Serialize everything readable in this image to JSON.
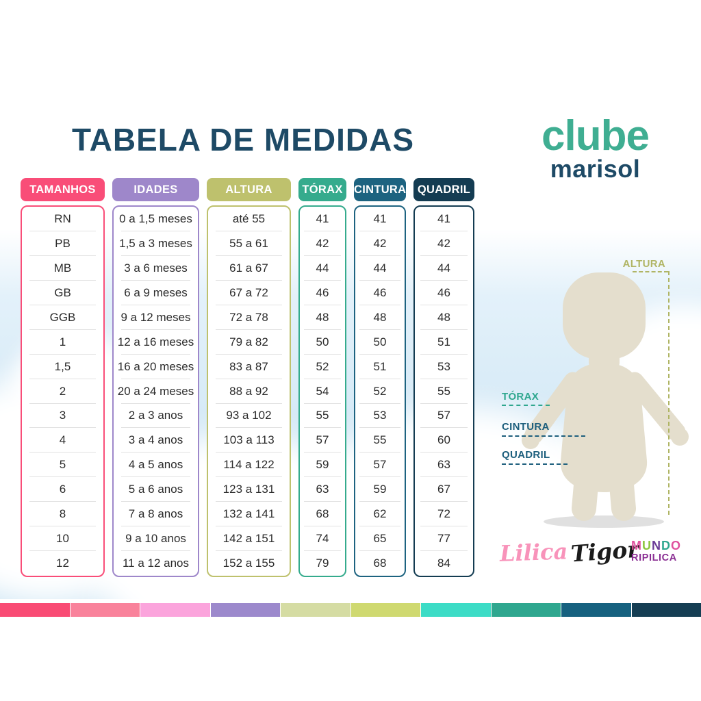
{
  "title": "TABELA DE MEDIDAS",
  "logo": {
    "line1": "clube",
    "line2": "marisol"
  },
  "chart_data": {
    "type": "table",
    "title": "TABELA DE MEDIDAS",
    "columns": [
      {
        "id": "tamanhos",
        "label": "TAMANHOS",
        "color": "#f94d78",
        "values": [
          "RN",
          "PB",
          "MB",
          "GB",
          "GGB",
          "1",
          "1,5",
          "2",
          "3",
          "4",
          "5",
          "6",
          "8",
          "10",
          "12"
        ]
      },
      {
        "id": "idades",
        "label": "IDADES",
        "color": "#9e87ca",
        "values": [
          "0 a 1,5 meses",
          "1,5 a 3 meses",
          "3 a 6 meses",
          "6 a 9 meses",
          "9 a 12 meses",
          "12 a 16 meses",
          "16 a 20 meses",
          "20 a 24 meses",
          "2 a 3 anos",
          "3 a 4 anos",
          "4 a 5 anos",
          "5 a 6 anos",
          "7 a 8 anos",
          "9 a 10 anos",
          "11 a 12 anos"
        ]
      },
      {
        "id": "altura",
        "label": "ALTURA",
        "color": "#bec16d",
        "values": [
          "até 55",
          "55 a 61",
          "61 a 67",
          "67 a 72",
          "72 a 78",
          "79 a 82",
          "83 a 87",
          "88 a 92",
          "93 a 102",
          "103 a 113",
          "114 a 122",
          "123 a 131",
          "132 a 141",
          "142 a 151",
          "152 a 155"
        ]
      },
      {
        "id": "torax",
        "label": "TÓRAX",
        "color": "#35ab8d",
        "values": [
          "41",
          "42",
          "44",
          "46",
          "48",
          "50",
          "52",
          "54",
          "55",
          "57",
          "59",
          "63",
          "68",
          "74",
          "79"
        ]
      },
      {
        "id": "cintura",
        "label": "CINTURA",
        "color": "#1d6380",
        "values": [
          "41",
          "42",
          "44",
          "46",
          "48",
          "50",
          "51",
          "52",
          "53",
          "55",
          "57",
          "59",
          "62",
          "65",
          "68"
        ]
      },
      {
        "id": "quadril",
        "label": "QUADRIL",
        "color": "#143c52",
        "values": [
          "41",
          "42",
          "44",
          "46",
          "48",
          "51",
          "53",
          "55",
          "57",
          "60",
          "63",
          "67",
          "72",
          "77",
          "84"
        ]
      }
    ]
  },
  "figure": {
    "labels": [
      {
        "id": "altura",
        "text": "ALTURA",
        "color": "#b0b565"
      },
      {
        "id": "torax",
        "text": "TÓRAX",
        "color": "#2fa78f"
      },
      {
        "id": "cintura",
        "text": "CINTURA",
        "color": "#1d5f7d"
      },
      {
        "id": "quadril",
        "text": "QUADRIL",
        "color": "#1d5f7d"
      }
    ]
  },
  "brands": [
    {
      "id": "lilica",
      "name": "Lilica"
    },
    {
      "id": "tigor",
      "name": "Tigor"
    },
    {
      "id": "mundo-ripilica",
      "line1": "MUNDO",
      "line2": "RIPILICA",
      "line1_colors": [
        "#e0519e",
        "#8dc63f",
        "#6a3b96",
        "#2fa78f",
        "#e0519e"
      ]
    }
  ],
  "footer_bar_colors": [
    "#f94b74",
    "#f9829b",
    "#fba4dc",
    "#9c89cc",
    "#d5dca3",
    "#cfd970",
    "#3cdcc6",
    "#2fa78f",
    "#16617f",
    "#153e53"
  ]
}
